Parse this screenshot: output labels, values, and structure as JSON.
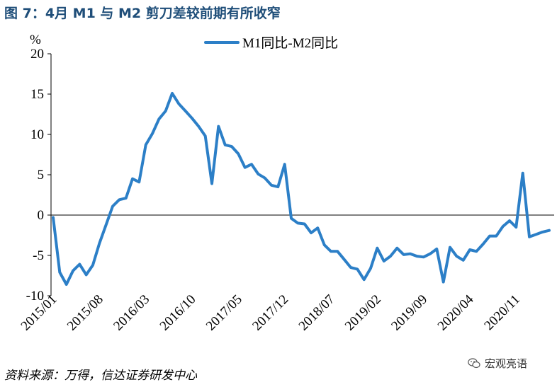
{
  "title": "图 7：4月 M1 与 M2 剪刀差较前期有所收窄",
  "source": "资料来源：万得，信达证券研发中心",
  "watermark": "宏观亮语",
  "watermark_icon": "wechat-icon",
  "chart_data": {
    "type": "line",
    "ylabel": "%",
    "ylim": [
      -10,
      20
    ],
    "yticks": [
      -10,
      -5,
      0,
      5,
      10,
      15,
      20
    ],
    "xtick_labels": [
      "2015/01",
      "2015/08",
      "2016/03",
      "2016/10",
      "2017/05",
      "2017/12",
      "2018/07",
      "2019/02",
      "2019/09",
      "2020/04",
      "2020/11"
    ],
    "x_start": "2015/01",
    "x_end": "2021/04",
    "legend_position": "top",
    "series": [
      {
        "name": "M1同比-M2同比",
        "color": "#2c7fc7",
        "x": [
          "2015/01",
          "2015/02",
          "2015/03",
          "2015/04",
          "2015/05",
          "2015/06",
          "2015/07",
          "2015/08",
          "2015/09",
          "2015/10",
          "2015/11",
          "2015/12",
          "2016/01",
          "2016/02",
          "2016/03",
          "2016/04",
          "2016/05",
          "2016/06",
          "2016/07",
          "2016/08",
          "2016/09",
          "2016/10",
          "2016/11",
          "2016/12",
          "2017/01",
          "2017/02",
          "2017/03",
          "2017/04",
          "2017/05",
          "2017/06",
          "2017/07",
          "2017/08",
          "2017/09",
          "2017/10",
          "2017/11",
          "2017/12",
          "2018/01",
          "2018/02",
          "2018/03",
          "2018/04",
          "2018/05",
          "2018/06",
          "2018/07",
          "2018/08",
          "2018/09",
          "2018/10",
          "2018/11",
          "2018/12",
          "2019/01",
          "2019/02",
          "2019/03",
          "2019/04",
          "2019/05",
          "2019/06",
          "2019/07",
          "2019/08",
          "2019/09",
          "2019/10",
          "2019/11",
          "2019/12",
          "2020/01",
          "2020/02",
          "2020/03",
          "2020/04",
          "2020/05",
          "2020/06",
          "2020/07",
          "2020/08",
          "2020/09",
          "2020/10",
          "2020/11",
          "2020/12",
          "2021/01",
          "2021/02",
          "2021/03",
          "2021/04"
        ],
        "values": [
          -0.3,
          -7.1,
          -8.6,
          -6.9,
          -6.1,
          -7.4,
          -6.2,
          -3.5,
          -1.2,
          1.1,
          1.9,
          2.1,
          4.5,
          4.1,
          8.7,
          10.1,
          11.9,
          12.9,
          15.1,
          13.8,
          12.9,
          12.0,
          11.0,
          9.8,
          3.9,
          11.0,
          8.7,
          8.5,
          7.6,
          5.9,
          6.3,
          5.1,
          4.6,
          3.7,
          3.5,
          6.3,
          -0.4,
          -1.0,
          -1.1,
          -2.2,
          -1.6,
          -3.7,
          -4.5,
          -4.5,
          -5.5,
          -6.5,
          -6.7,
          -8.0,
          -6.6,
          -4.1,
          -5.7,
          -5.1,
          -4.1,
          -4.9,
          -4.8,
          -5.1,
          -5.2,
          -4.8,
          -4.2,
          -8.3,
          -4.0,
          -5.1,
          -5.6,
          -4.3,
          -4.5,
          -3.6,
          -2.6,
          -2.6,
          -1.4,
          -0.7,
          -1.5,
          5.2,
          -2.7,
          -2.4,
          -2.1,
          -1.9
        ]
      }
    ]
  }
}
